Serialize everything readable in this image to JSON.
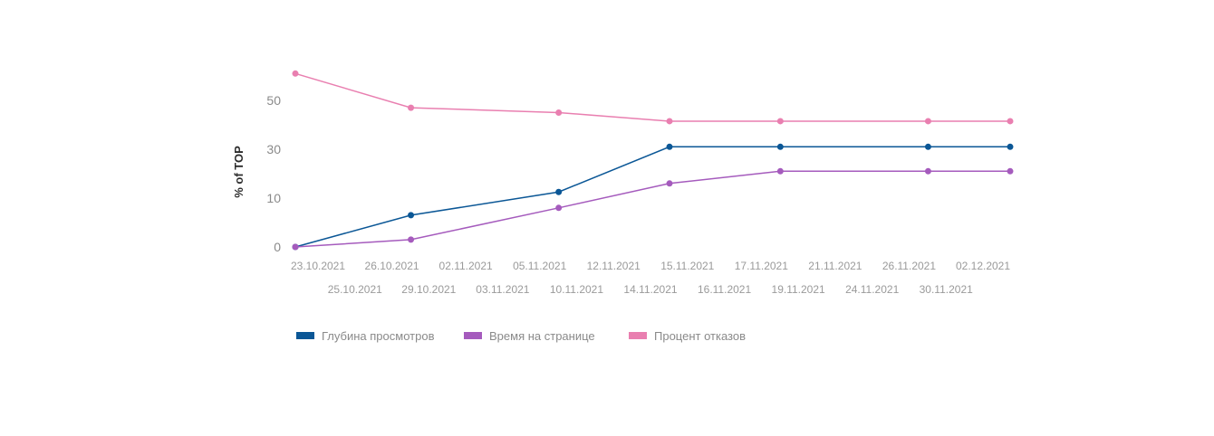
{
  "chart_data": {
    "type": "line",
    "title": "",
    "xlabel": "",
    "ylabel": "% of TOP",
    "y_ticks": [
      "50",
      "30",
      "10",
      "0"
    ],
    "x_labels": [
      "23.10.2021",
      "25.10.2021",
      "26.10.2021",
      "29.10.2021",
      "02.11.2021",
      "03.11.2021",
      "05.11.2021",
      "10.11.2021",
      "12.11.2021",
      "14.11.2021",
      "15.11.2021",
      "16.11.2021",
      "17.11.2021",
      "19.11.2021",
      "21.11.2021",
      "24.11.2021",
      "26.11.2021",
      "30.11.2021",
      "02.12.2021"
    ],
    "categories": [
      "23.10.2021",
      "26.10.2021",
      "05.11.2021",
      "14.11.2021",
      "17.11.2021",
      "26.11.2021",
      "02.12.2021"
    ],
    "series": [
      {
        "name": "Глубина просмотров",
        "color": "#0b5796",
        "values": [
          0,
          6.5,
          12.5,
          31,
          31,
          31,
          31
        ]
      },
      {
        "name": "Время на странице",
        "color": "#a55bbd",
        "values": [
          0,
          1.5,
          8,
          16,
          21,
          21,
          21
        ]
      },
      {
        "name": "Процент отказов",
        "color": "#e97fb0",
        "values": [
          61,
          47,
          45,
          41.5,
          41.5,
          41.5,
          41.5
        ]
      }
    ],
    "grid": false,
    "legend_position": "bottom-left"
  }
}
